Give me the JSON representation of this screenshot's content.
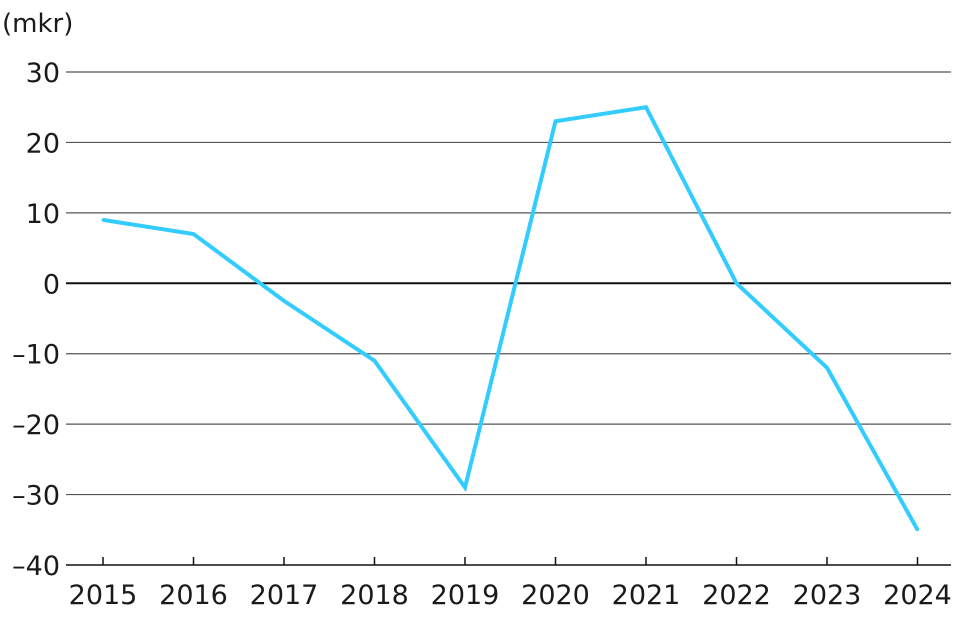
{
  "chart_data": {
    "type": "line",
    "title": "",
    "xlabel": "",
    "ylabel": "(mkr)",
    "x": [
      "2015",
      "2016",
      "2017",
      "2018",
      "2019",
      "2020",
      "2021",
      "2022",
      "2023",
      "2024"
    ],
    "series": [
      {
        "values": [
          9,
          7,
          -2.5,
          -11,
          -29,
          23,
          25,
          0,
          -12,
          -35
        ]
      }
    ],
    "ylim": [
      -40,
      30
    ],
    "yticks": [
      30,
      20,
      10,
      0,
      -10,
      -20,
      -30,
      -40
    ],
    "ytick_labels": [
      "30",
      "20",
      "10",
      "0",
      "–10",
      "–20",
      "–30",
      "–40"
    ],
    "grid": "horizontal",
    "legend": "none",
    "colors": {
      "line": "#33ccff",
      "grid": "#555555",
      "zero_line": "#111111",
      "text": "#1a1a1a"
    }
  }
}
